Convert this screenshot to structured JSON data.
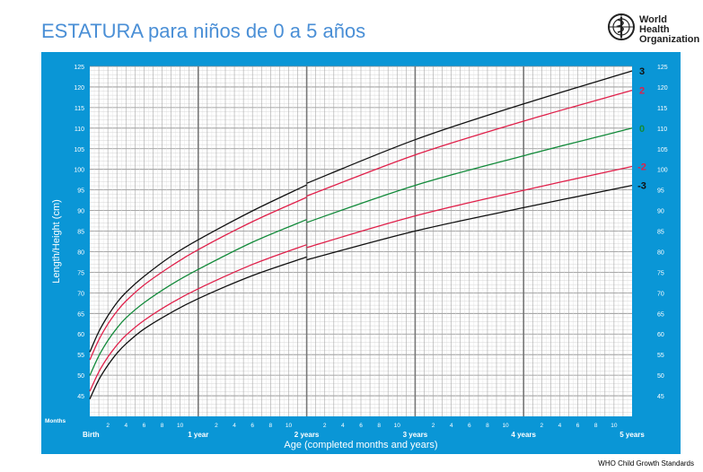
{
  "title": "ESTATURA para niños de 0 a 5 años",
  "organization": {
    "line1": "World Health",
    "line2": "Organization",
    "icon": "who-emblem-icon"
  },
  "footer": "WHO Child Growth Standards",
  "colors": {
    "frame": "#0a96d6",
    "grid": "#a8a8a8",
    "sd_black": "#111111",
    "sd_red": "#e0204a",
    "sd_green": "#128a3a"
  },
  "chart_data": {
    "type": "line",
    "title": "",
    "xlabel": "Age (completed months and years)",
    "ylabel": "Length/Height (cm)",
    "months_label": "Months",
    "xlim": [
      0,
      60
    ],
    "ylim": [
      40,
      125
    ],
    "y_ticks": [
      45,
      50,
      55,
      60,
      65,
      70,
      75,
      80,
      85,
      90,
      95,
      100,
      105,
      110,
      115,
      120,
      125
    ],
    "year_labels": [
      {
        "month": 0,
        "label": "Birth"
      },
      {
        "month": 12,
        "label": "1 year"
      },
      {
        "month": 24,
        "label": "2 years"
      },
      {
        "month": 36,
        "label": "3 years"
      },
      {
        "month": 48,
        "label": "4 years"
      },
      {
        "month": 60,
        "label": "5 years"
      }
    ],
    "month_ticks": [
      "2",
      "4",
      "6",
      "8",
      "10"
    ],
    "grid": true,
    "series": [
      {
        "name": "3",
        "color": "#111111",
        "x": [
          0,
          1,
          2,
          3,
          4,
          6,
          9,
          12,
          18,
          24,
          24,
          36,
          48,
          60
        ],
        "y": [
          55.6,
          60.6,
          64.4,
          67.6,
          70.1,
          74.0,
          78.9,
          82.9,
          89.9,
          96.2,
          96.6,
          107.2,
          115.9,
          123.9
        ]
      },
      {
        "name": "2",
        "color": "#e0204a",
        "x": [
          0,
          1,
          2,
          3,
          4,
          6,
          9,
          12,
          18,
          24,
          24,
          36,
          48,
          60
        ],
        "y": [
          53.7,
          58.6,
          62.4,
          65.5,
          68.0,
          71.9,
          76.5,
          80.5,
          87.3,
          93.2,
          93.5,
          103.5,
          111.7,
          119.2
        ]
      },
      {
        "name": "0",
        "color": "#128a3a",
        "x": [
          0,
          1,
          2,
          3,
          4,
          6,
          9,
          12,
          18,
          24,
          24,
          36,
          48,
          60
        ],
        "y": [
          49.9,
          54.7,
          58.4,
          61.4,
          63.9,
          67.6,
          72.0,
          75.7,
          82.3,
          87.8,
          87.1,
          96.1,
          103.3,
          110.0
        ]
      },
      {
        "name": "-2",
        "color": "#e0204a",
        "x": [
          0,
          1,
          2,
          3,
          4,
          6,
          9,
          12,
          18,
          24,
          24,
          36,
          48,
          60
        ],
        "y": [
          46.1,
          50.8,
          54.4,
          57.3,
          59.7,
          63.3,
          67.5,
          71.0,
          76.9,
          81.7,
          81.0,
          88.7,
          94.9,
          100.7
        ]
      },
      {
        "name": "-3",
        "color": "#111111",
        "x": [
          0,
          1,
          2,
          3,
          4,
          6,
          9,
          12,
          18,
          24,
          24,
          36,
          48,
          60
        ],
        "y": [
          44.2,
          48.9,
          52.4,
          55.3,
          57.6,
          61.2,
          65.2,
          68.6,
          74.2,
          78.7,
          78.0,
          85.0,
          90.7,
          96.1
        ]
      }
    ]
  }
}
